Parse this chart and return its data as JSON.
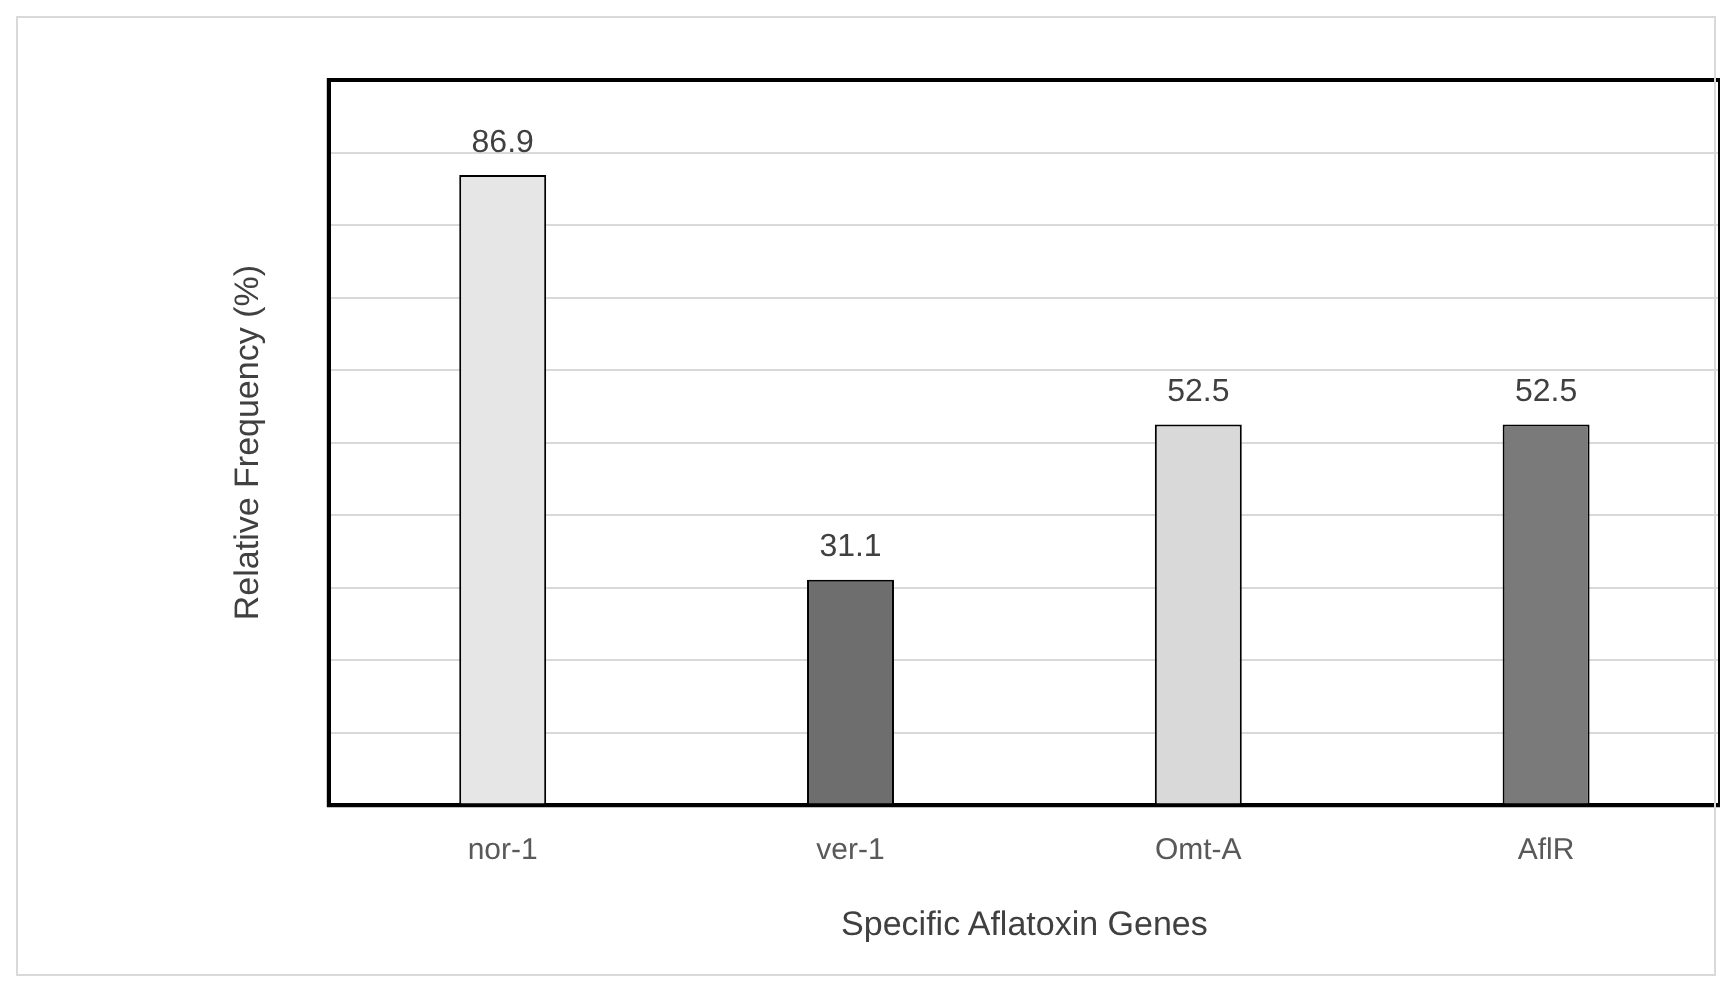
{
  "chart_data": {
    "type": "bar",
    "xlabel": "Specific Aflatoxin Genes",
    "ylabel": "Relative Frequency (%)",
    "categories": [
      "nor-1",
      "ver-1",
      "Omt-A",
      "AflR"
    ],
    "values": [
      86.9,
      31.1,
      52.5,
      52.5
    ],
    "colors": [
      "#e6e6e6",
      "#6e6e6e",
      "#d9d9d9",
      "#7a7a7a"
    ],
    "ylim": [
      0,
      100
    ],
    "yticks": [
      {
        "value": 0,
        "label": null
      },
      {
        "value": 10,
        "label": null
      },
      {
        "value": 20,
        "label": null
      },
      {
        "value": 30,
        "label": null
      },
      {
        "value": 40,
        "label": null
      },
      {
        "value": 50,
        "label": null
      },
      {
        "value": 60,
        "label": null
      },
      {
        "value": 70,
        "label": null
      },
      {
        "value": 80,
        "label": null
      },
      {
        "value": 90,
        "label": null
      },
      {
        "value": 100,
        "label": null
      }
    ],
    "grid": "y",
    "tick_labels": "x",
    "data_labels": true
  }
}
